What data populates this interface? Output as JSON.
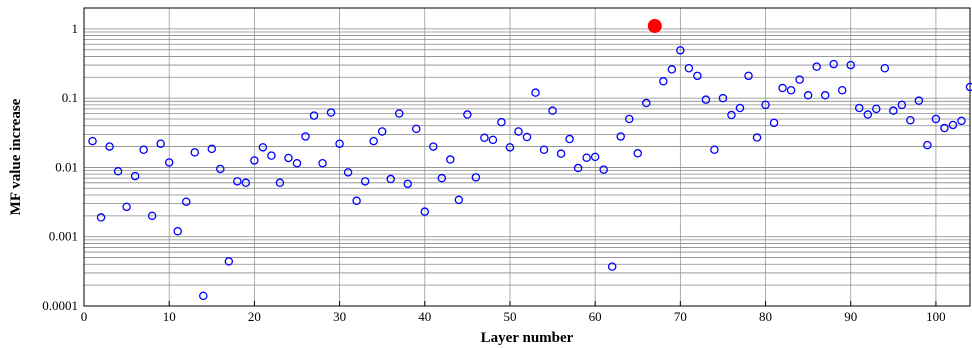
{
  "chart_data": {
    "type": "scatter",
    "title": "",
    "xlabel": "Layer number",
    "ylabel": "MF value increase",
    "xlim": [
      0,
      104
    ],
    "ylim": [
      0.0001,
      2
    ],
    "yscale": "log",
    "grid": true,
    "x_ticks": [
      "0",
      "10",
      "20",
      "30",
      "40",
      "50",
      "60",
      "70",
      "80",
      "90",
      "100"
    ],
    "y_ticks": [
      "0.0001",
      "0.001",
      "0.01",
      "0.1",
      "1"
    ],
    "series": [
      {
        "marker": "open-circle",
        "color": "#0000ff",
        "points": [
          [
            1,
            0.024
          ],
          [
            2,
            0.0019
          ],
          [
            3,
            0.02
          ],
          [
            4,
            0.0088
          ],
          [
            5,
            0.0027
          ],
          [
            6,
            0.0075
          ],
          [
            7,
            0.018
          ],
          [
            8,
            0.002
          ],
          [
            9,
            0.022
          ],
          [
            10,
            0.0118
          ],
          [
            11,
            0.0012
          ],
          [
            12,
            0.0032
          ],
          [
            13,
            0.0165
          ],
          [
            14,
            0.00014
          ],
          [
            15,
            0.0185
          ],
          [
            16,
            0.0095
          ],
          [
            17,
            0.00044
          ],
          [
            18,
            0.0063
          ],
          [
            19,
            0.006
          ],
          [
            20,
            0.0126
          ],
          [
            21,
            0.0195
          ],
          [
            22,
            0.0148
          ],
          [
            23,
            0.006
          ],
          [
            24,
            0.0137
          ],
          [
            25,
            0.0115
          ],
          [
            26,
            0.028
          ],
          [
            27,
            0.056
          ],
          [
            28,
            0.0115
          ],
          [
            29,
            0.062
          ],
          [
            30,
            0.022
          ],
          [
            31,
            0.0085
          ],
          [
            32,
            0.0033
          ],
          [
            33,
            0.0063
          ],
          [
            34,
            0.024
          ],
          [
            35,
            0.033
          ],
          [
            36,
            0.0068
          ],
          [
            37,
            0.06
          ],
          [
            38,
            0.0058
          ],
          [
            39,
            0.036
          ],
          [
            40,
            0.0023
          ],
          [
            41,
            0.02
          ],
          [
            42,
            0.007
          ],
          [
            43,
            0.013
          ],
          [
            44,
            0.0034
          ],
          [
            45,
            0.058
          ],
          [
            46,
            0.0072
          ],
          [
            47,
            0.0268
          ],
          [
            48,
            0.025
          ],
          [
            49,
            0.045
          ],
          [
            50,
            0.0195
          ],
          [
            51,
            0.033
          ],
          [
            52,
            0.0275
          ],
          [
            53,
            0.12
          ],
          [
            54,
            0.018
          ],
          [
            55,
            0.066
          ],
          [
            56,
            0.0158
          ],
          [
            57,
            0.0257
          ],
          [
            58,
            0.0098
          ],
          [
            59,
            0.0138
          ],
          [
            60,
            0.0142
          ],
          [
            61,
            0.0093
          ],
          [
            62,
            0.00037
          ],
          [
            63,
            0.028
          ],
          [
            64,
            0.05
          ],
          [
            65,
            0.016
          ],
          [
            66,
            0.085
          ],
          [
            68,
            0.175
          ],
          [
            69,
            0.26
          ],
          [
            70,
            0.49
          ],
          [
            71,
            0.27
          ],
          [
            72,
            0.21
          ],
          [
            73,
            0.095
          ],
          [
            74,
            0.018
          ],
          [
            75,
            0.1
          ],
          [
            76,
            0.057
          ],
          [
            77,
            0.072
          ],
          [
            78,
            0.21
          ],
          [
            79,
            0.027
          ],
          [
            80,
            0.08
          ],
          [
            81,
            0.044
          ],
          [
            82,
            0.14
          ],
          [
            83,
            0.13
          ],
          [
            84,
            0.185
          ],
          [
            85,
            0.11
          ],
          [
            86,
            0.285
          ],
          [
            87,
            0.11
          ],
          [
            88,
            0.31
          ],
          [
            89,
            0.13
          ],
          [
            90,
            0.3
          ],
          [
            91,
            0.072
          ],
          [
            92,
            0.058
          ],
          [
            93,
            0.07
          ],
          [
            94,
            0.27
          ],
          [
            95,
            0.066
          ],
          [
            96,
            0.08
          ],
          [
            97,
            0.048
          ],
          [
            98,
            0.092
          ],
          [
            99,
            0.021
          ],
          [
            100,
            0.05
          ],
          [
            101,
            0.037
          ],
          [
            102,
            0.041
          ],
          [
            103,
            0.047
          ],
          [
            104,
            0.145
          ]
        ]
      },
      {
        "marker": "filled-circle",
        "color": "#ff0000",
        "points": [
          [
            67,
            1.1
          ]
        ]
      }
    ]
  }
}
